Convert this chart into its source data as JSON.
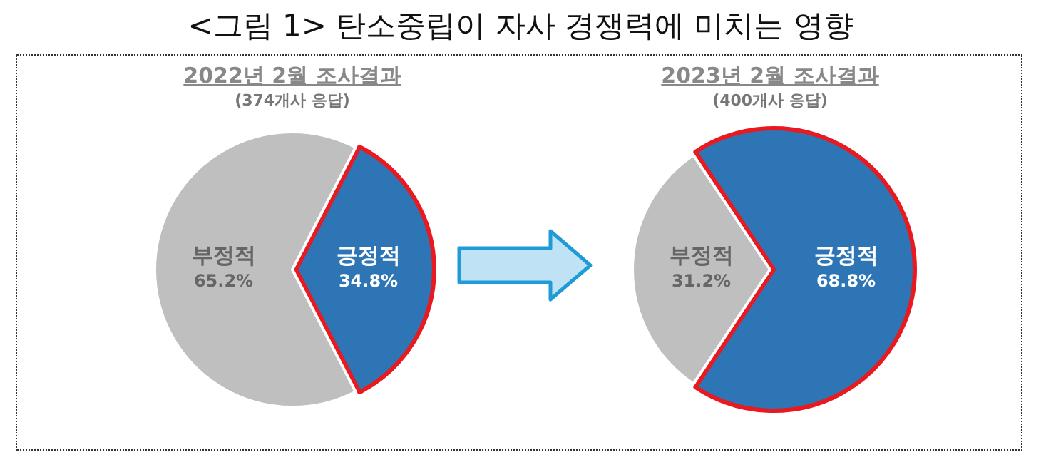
{
  "chart_data": [
    {
      "type": "pie",
      "title": "2022년 2월 조사결과",
      "subtitle": "(374개사 응답)",
      "annotations": [
        "<그림 1> 탄소중립이 자사 경쟁력에 미치는 영향"
      ],
      "categories": [
        "긍정적",
        "부정적"
      ],
      "values": [
        34.8,
        65.2
      ],
      "value_labels": [
        "34.8%",
        "65.2%"
      ],
      "colors": [
        "#2e75b6",
        "#bfbfbf"
      ],
      "legend": false
    },
    {
      "type": "pie",
      "title": "2023년 2월 조사결과",
      "subtitle": "(400개사 응답)",
      "categories": [
        "긍정적",
        "부정적"
      ],
      "values": [
        68.8,
        31.2
      ],
      "value_labels": [
        "68.8%",
        "31.2%"
      ],
      "colors": [
        "#2e75b6",
        "#bfbfbf"
      ],
      "legend": false
    }
  ]
}
